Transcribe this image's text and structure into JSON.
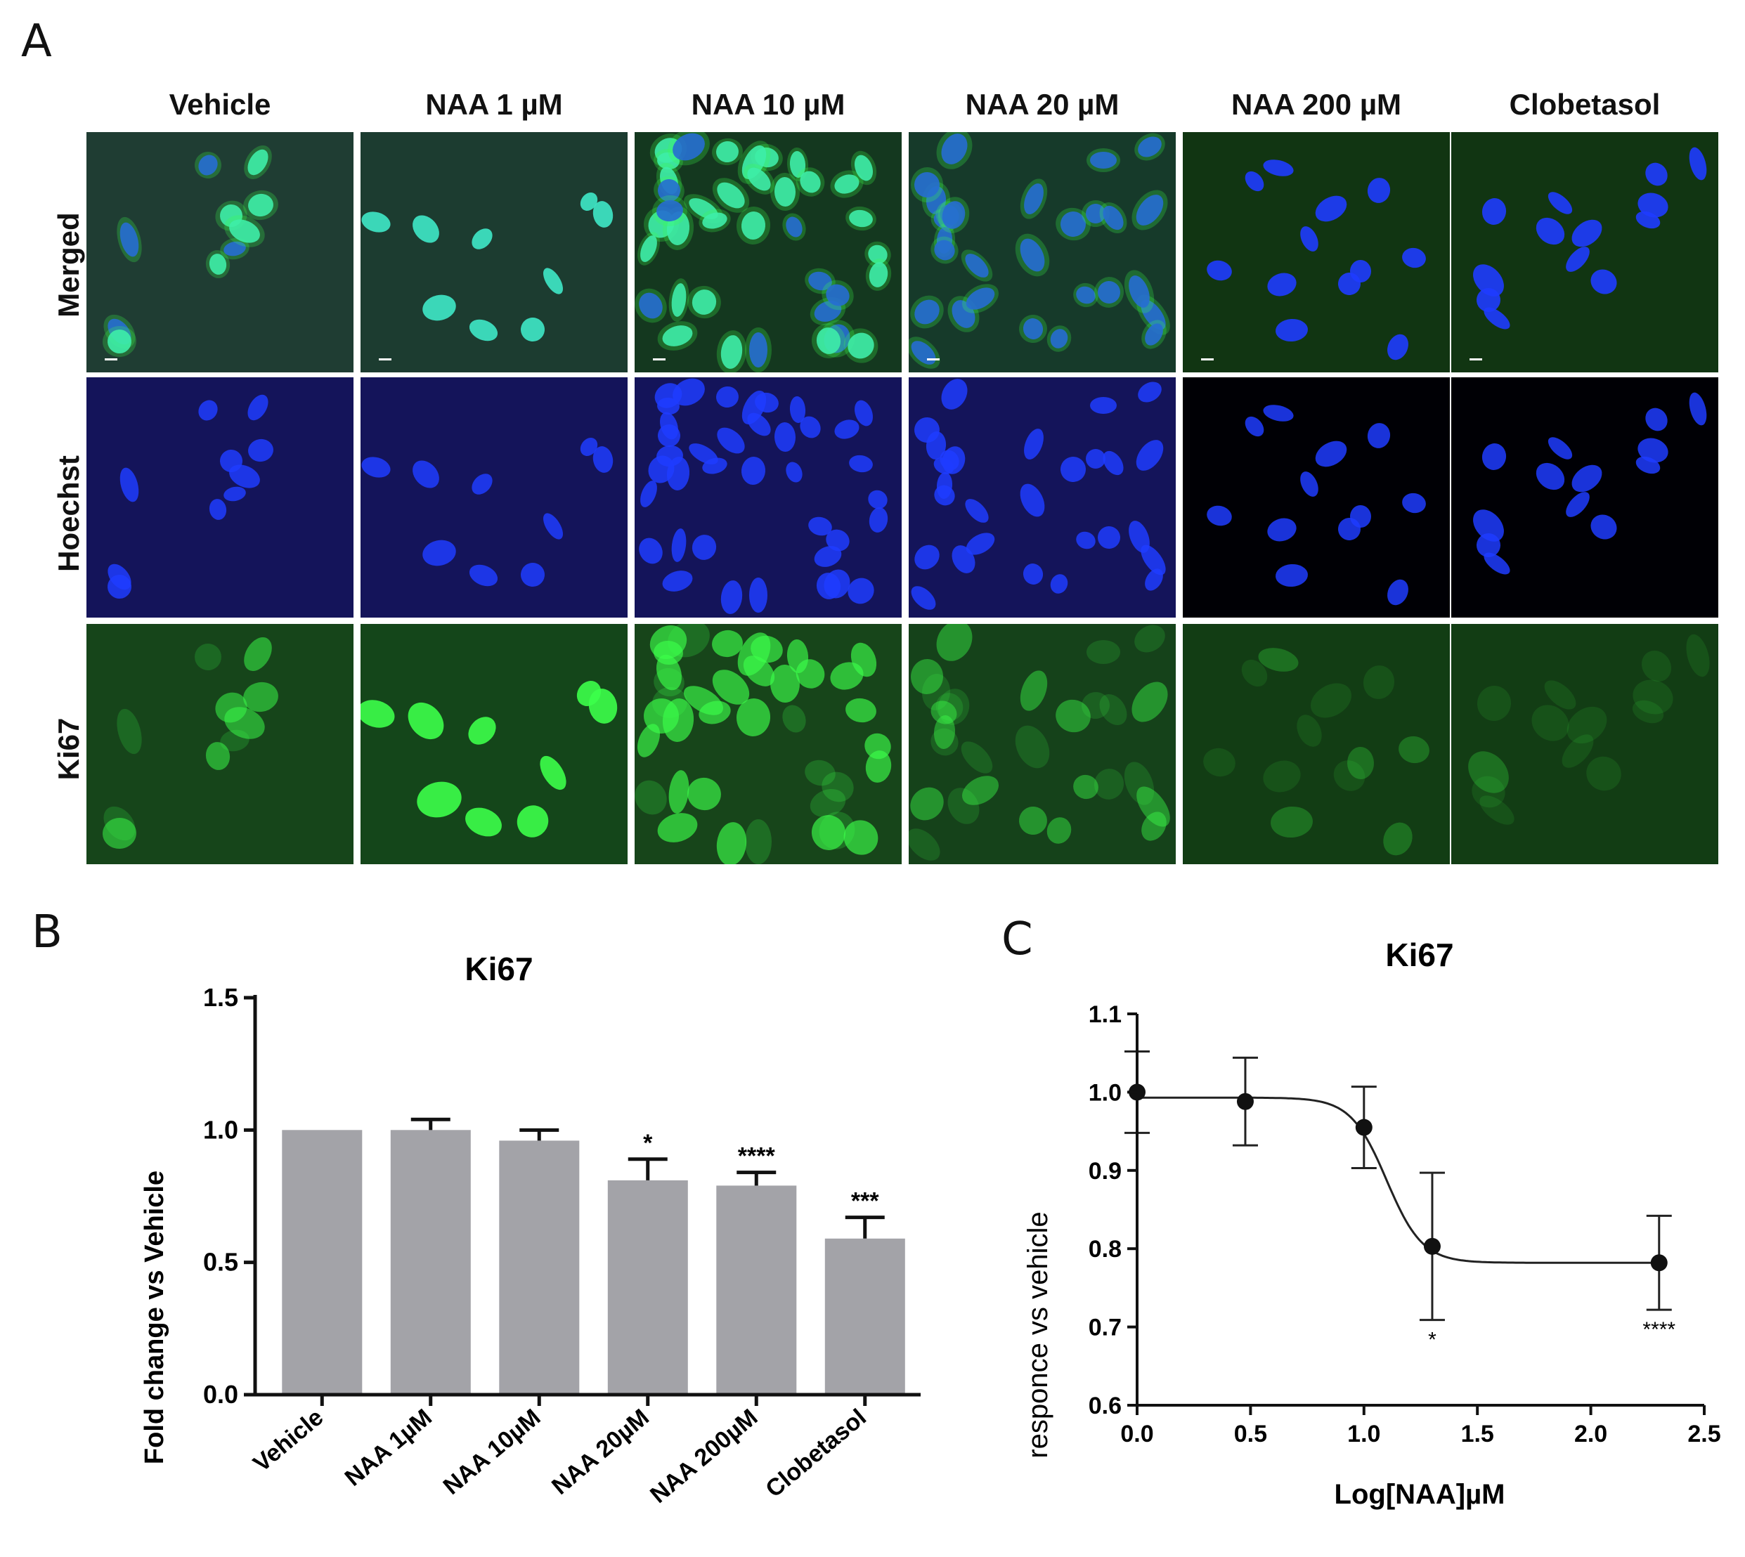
{
  "figure": {
    "panel_letters": [
      "A",
      "B",
      "C"
    ],
    "columns": [
      "Vehicle",
      "NAA 1 µM",
      "NAA 10 µM",
      "NAA 20 µM",
      "NAA 200 µM",
      "Clobetasol"
    ],
    "rows": [
      "Merged",
      "Hoechst",
      "Ki67"
    ],
    "channel_colors": {
      "merged_bg": [
        "#1f3d33",
        "#1c3c30",
        "#14381f",
        "#163a2a",
        "#113512",
        "#113512"
      ],
      "hoechst_bg": [
        "#14145a",
        "#14145a",
        "#14145a",
        "#14145a",
        "#000005",
        "#000005"
      ],
      "ki67_bg": [
        "#16451a",
        "#14461a",
        "#17451a",
        "#15421a",
        "#123d14",
        "#123d14"
      ],
      "nuclei": "#1f3cff",
      "ki67": "#3cff4a",
      "merged_ki67_nuclei": "#3fe8c8"
    },
    "ki67_intensity": [
      0.55,
      1.0,
      0.7,
      0.45,
      0.18,
      0.1
    ],
    "cells_per_field": [
      10,
      9,
      38,
      28,
      12,
      13
    ]
  },
  "chart_data": [
    {
      "type": "bar",
      "title": "Ki67",
      "ylabel": "Fold change vs Vehicle",
      "xlabel": "",
      "categories": [
        "Vehicle",
        "NAA 1µM",
        "NAA 10µM",
        "NAA 20µM",
        "NAA 200µM",
        "Clobetasol"
      ],
      "values": [
        1.0,
        1.0,
        0.96,
        0.81,
        0.79,
        0.59
      ],
      "errors": [
        0.0,
        0.04,
        0.04,
        0.08,
        0.05,
        0.08
      ],
      "significance": [
        "",
        "",
        "",
        "*",
        "****",
        "***"
      ],
      "ylim": [
        0.0,
        1.5
      ],
      "yticks": [
        "0.0",
        "0.5",
        "1.0",
        "1.5"
      ],
      "bar_color": "#a3a3a8"
    },
    {
      "type": "scatter",
      "title": "Ki67",
      "ylabel": "responce vs vehicle",
      "xlabel": "Log[NAA]µM",
      "x": [
        0.0,
        0.477,
        1.0,
        1.301,
        2.301
      ],
      "y": [
        1.0,
        0.988,
        0.955,
        0.803,
        0.782
      ],
      "yerr": [
        0.052,
        0.056,
        0.052,
        0.094,
        0.06
      ],
      "significance": [
        "",
        "",
        "",
        "*",
        "****"
      ],
      "fit": {
        "top": 0.993,
        "bottom": 0.782,
        "logEC50": 1.1,
        "hill": 5.5
      },
      "xlim": [
        0.0,
        2.5
      ],
      "ylim": [
        0.6,
        1.1
      ],
      "xticks": [
        "0.0",
        "0.5",
        "1.0",
        "1.5",
        "2.0",
        "2.5"
      ],
      "yticks": [
        "0.6",
        "0.7",
        "0.8",
        "0.9",
        "1.0",
        "1.1"
      ]
    }
  ]
}
